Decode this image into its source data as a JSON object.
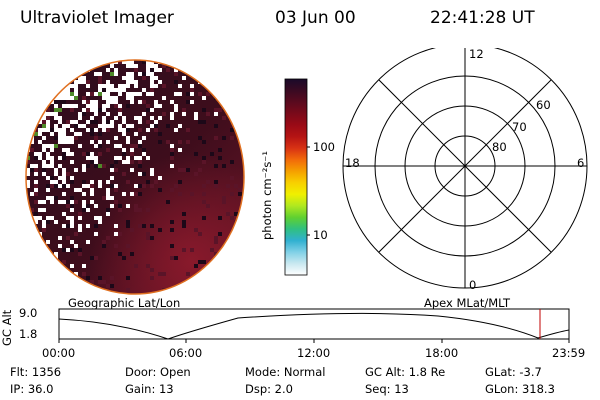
{
  "header": {
    "title": "Ultraviolet Imager",
    "date": "03 Jun 00",
    "time": "22:41:28 UT"
  },
  "colorbar": {
    "unit_label": "photon cm⁻²s⁻¹",
    "tick_high": "100",
    "tick_low": "10",
    "colors": [
      "#1a0a2a",
      "#3a0a22",
      "#5a0a1e",
      "#7a0a1a",
      "#9a0a16",
      "#b51414",
      "#d83214",
      "#f26a0a",
      "#f5a000",
      "#f8d000",
      "#f0f000",
      "#b0e820",
      "#60d030",
      "#30c080",
      "#30b0d0",
      "#7fd0e6",
      "#c8e8f0",
      "#ffffff"
    ]
  },
  "polar_plot": {
    "mlt_top": "12",
    "mlt_bottom": "0",
    "mlt_left": "18",
    "mlt_right": "6",
    "lat_labels": [
      "60",
      "70",
      "80"
    ]
  },
  "timeline": {
    "left_label": "Geographic Lat/Lon",
    "right_label": "Apex MLat/MLT",
    "axis_title": "GC Alt",
    "y_max": "9.0",
    "y_min": "1.8",
    "x_ticks": [
      "00:00",
      "06:00",
      "12:00",
      "18:00",
      "23:59"
    ]
  },
  "info": {
    "flt": "Flt: 1356",
    "door": "Door: Open",
    "mode": "Mode: Normal",
    "gc_alt": "GC Alt: 1.8 Re",
    "glat": "GLat:   -3.7",
    "ip": "IP: 36.0",
    "gain": "Gain: 13",
    "dsp": "Dsp:     2.0",
    "seq": "Seq: 13",
    "glon": "GLon: 318.3"
  }
}
